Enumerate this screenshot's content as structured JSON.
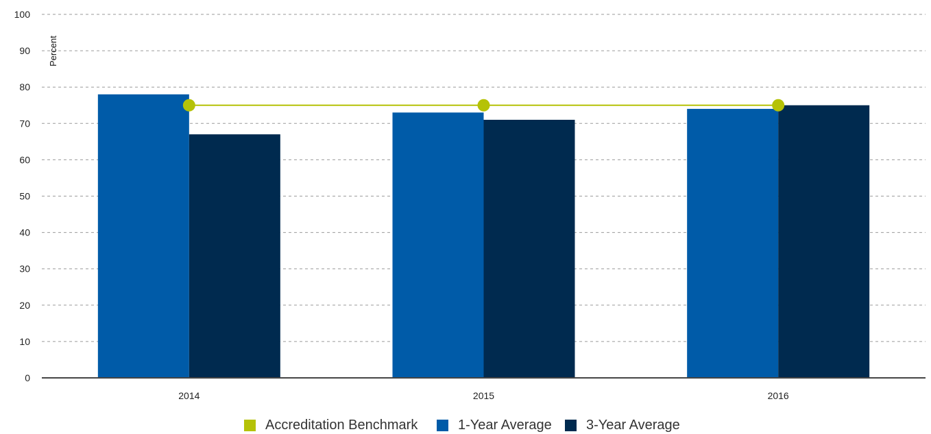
{
  "chart_data": {
    "type": "bar",
    "categories": [
      "2014",
      "2015",
      "2016"
    ],
    "series": [
      {
        "name": "Accreditation Benchmark",
        "kind": "line",
        "color": "#b5c207",
        "values": [
          75,
          75,
          75
        ]
      },
      {
        "name": "1-Year Average",
        "kind": "bar",
        "color": "#005ba8",
        "values": [
          78,
          73,
          74
        ]
      },
      {
        "name": "3-Year Average",
        "kind": "bar",
        "color": "#002a4f",
        "values": [
          67,
          71,
          75
        ]
      }
    ],
    "ylabel": "Percent",
    "ylim": [
      0,
      100
    ],
    "yticks": [
      0,
      10,
      20,
      30,
      40,
      50,
      60,
      70,
      80,
      90,
      100
    ],
    "grid": true,
    "legend_position": "bottom-center"
  },
  "legend": {
    "items": [
      {
        "label": "Accreditation Benchmark",
        "color": "#b5c207"
      },
      {
        "label": "1-Year Average",
        "color": "#005ba8"
      },
      {
        "label": "3-Year Average",
        "color": "#002a4f"
      }
    ]
  }
}
